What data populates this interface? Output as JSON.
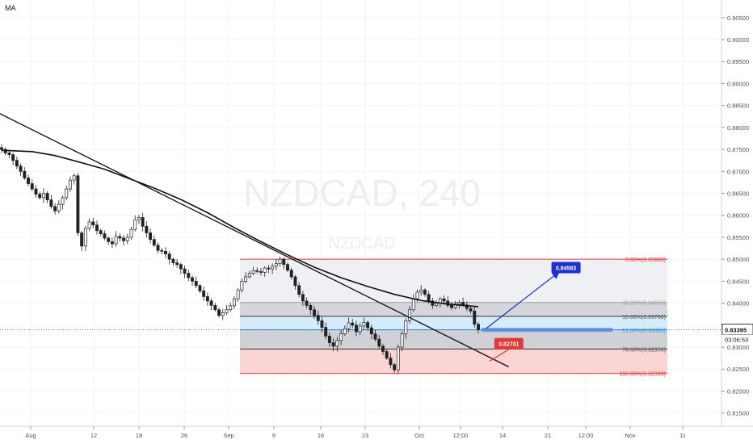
{
  "indicator_label": "MA",
  "watermark": {
    "symbol": "NZDCAD, 240",
    "sub": "NZDCAD"
  },
  "chart_data": {
    "type": "candlestick",
    "symbol": "NZDCAD",
    "timeframe": "240",
    "ylim": [
      0.812,
      0.909
    ],
    "y_ticks": [
      "0.90500",
      "0.90000",
      "0.89500",
      "0.89000",
      "0.88500",
      "0.88000",
      "0.87500",
      "0.87000",
      "0.86500",
      "0.86000",
      "0.85500",
      "0.85000",
      "0.84500",
      "0.84000",
      "0.83500",
      "0.83000",
      "0.82500",
      "0.82000",
      "0.81500"
    ],
    "x_ticks": [
      "Aug",
      "12",
      "19",
      "26",
      "Sep",
      "9",
      "16",
      "23",
      "Oct",
      "12:00",
      "14",
      "21",
      "12:00",
      "Nov",
      "11"
    ],
    "colors": {
      "up": "#26a69a",
      "down": "#ef5350",
      "candle": "#222222",
      "fib_line": "#e53935",
      "fib_mid": "#333333",
      "fib_618": "#2196f3",
      "arrow": "#1e2fd6",
      "ma": "#111111"
    },
    "close_series": [
      0.875,
      0.8742,
      0.8738,
      0.8725,
      0.8712,
      0.87,
      0.8685,
      0.8672,
      0.866,
      0.8648,
      0.864,
      0.865,
      0.8635,
      0.862,
      0.861,
      0.8625,
      0.864,
      0.866,
      0.868,
      0.869,
      0.856,
      0.853,
      0.857,
      0.8585,
      0.8578,
      0.8565,
      0.8558,
      0.8548,
      0.854,
      0.8535,
      0.8552,
      0.8548,
      0.8542,
      0.855,
      0.8568,
      0.859,
      0.8595,
      0.8575,
      0.856,
      0.8545,
      0.8532,
      0.852,
      0.8518,
      0.8512,
      0.85,
      0.8492,
      0.8488,
      0.8478,
      0.8468,
      0.8458,
      0.845,
      0.844,
      0.8428,
      0.8415,
      0.8405,
      0.8395,
      0.8385,
      0.8372,
      0.8378,
      0.8385,
      0.8394,
      0.841,
      0.843,
      0.845,
      0.846,
      0.8468,
      0.8474,
      0.8472,
      0.847,
      0.848,
      0.8478,
      0.8484,
      0.849,
      0.85,
      0.8488,
      0.8475,
      0.846,
      0.844,
      0.842,
      0.8405,
      0.8395,
      0.8385,
      0.8372,
      0.836,
      0.8345,
      0.8325,
      0.831,
      0.8302,
      0.8315,
      0.833,
      0.8342,
      0.8355,
      0.835,
      0.8335,
      0.8348,
      0.8356,
      0.8344,
      0.833,
      0.8318,
      0.8302,
      0.829,
      0.8275,
      0.826,
      0.8248,
      0.83,
      0.833,
      0.836,
      0.8385,
      0.841,
      0.8425,
      0.843,
      0.842,
      0.8405,
      0.8395,
      0.84,
      0.841,
      0.8405,
      0.8395,
      0.839,
      0.8398,
      0.8402,
      0.8396,
      0.8388,
      0.8382,
      0.8352,
      0.834
    ],
    "moving_average": [
      [
        0,
        0.8748
      ],
      [
        8,
        0.8745
      ],
      [
        14,
        0.8736
      ],
      [
        20,
        0.8722
      ],
      [
        27,
        0.8705
      ],
      [
        33,
        0.8685
      ],
      [
        40,
        0.8662
      ],
      [
        47,
        0.8636
      ],
      [
        54,
        0.8606
      ],
      [
        61,
        0.8572
      ],
      [
        68,
        0.854
      ],
      [
        75,
        0.851
      ],
      [
        82,
        0.8482
      ],
      [
        89,
        0.8458
      ],
      [
        96,
        0.8438
      ],
      [
        103,
        0.842
      ],
      [
        110,
        0.8406
      ],
      [
        117,
        0.8398
      ],
      [
        125,
        0.8392
      ]
    ],
    "trendline": {
      "from": [
        -2,
        0.8838
      ],
      "to": [
        133,
        0.8255
      ]
    },
    "fibonacci": [
      {
        "level": "0.00%",
        "price": "0.85000",
        "label": "0.00%(0.85000)"
      },
      {
        "level": "38.20%",
        "price": "0.84016",
        "label": "38.20%(0.84016)"
      },
      {
        "level": "50.00%",
        "price": "0.83700",
        "label": "50.00%(0.83700)"
      },
      {
        "level": "61.80%",
        "price": "0.83393",
        "label": "61.80%(0.83393)"
      },
      {
        "level": "78.60%",
        "price": "0.82956",
        "label": "78.60%(0.82956)"
      },
      {
        "level": "100.00%",
        "price": "0.82399",
        "label": "100.00%(0.82399)"
      }
    ],
    "price_callouts": [
      {
        "label": "0.84583",
        "x": 148,
        "price": 0.8481
      },
      {
        "label": "0.82781",
        "x": 133,
        "price": 0.8308
      }
    ],
    "projection_arrows": [
      {
        "from": [
          127,
          0.8342
        ],
        "to": [
          146,
          0.847
        ]
      },
      {
        "from": [
          128,
          0.8268
        ],
        "to": [
          133,
          0.8295
        ]
      }
    ],
    "last_price": {
      "label": "0.83395",
      "value": 0.83395,
      "countdown": "03:06:53"
    }
  }
}
